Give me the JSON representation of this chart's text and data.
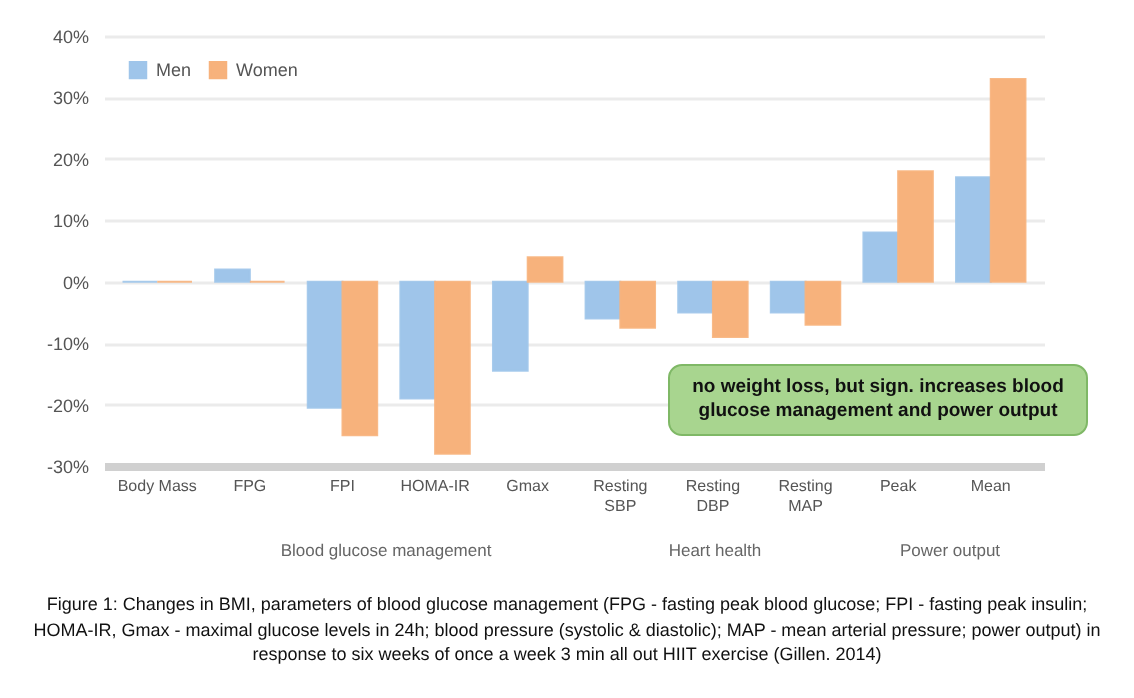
{
  "chart_data": {
    "type": "bar",
    "categories": [
      "Body Mass",
      "FPG",
      "FPI",
      "HOMA-IR",
      "Gmax",
      "Resting SBP",
      "Resting DBP",
      "Resting MAP",
      "Peak",
      "Mean"
    ],
    "series": [
      {
        "name": "Men",
        "color": "#9fc5ea",
        "values": [
          0,
          2,
          -20.5,
          -19,
          -14.5,
          -6,
          -5,
          -5,
          8,
          17
        ]
      },
      {
        "name": "Women",
        "color": "#f7b27c",
        "values": [
          0,
          0,
          -25,
          -28,
          4,
          -7.5,
          -9,
          -7,
          18,
          33
        ]
      }
    ],
    "ylim": [
      -30,
      40
    ],
    "yticks": [
      {
        "value": -30,
        "label": "-30%"
      },
      {
        "value": -20,
        "label": "-20%"
      },
      {
        "value": -10,
        "label": "-10%"
      },
      {
        "value": 0,
        "label": "0%"
      },
      {
        "value": 10,
        "label": "10%"
      },
      {
        "value": 20,
        "label": "20%"
      },
      {
        "value": 30,
        "label": "30%"
      },
      {
        "value": 40,
        "label": "40%"
      }
    ],
    "grid": "y",
    "legend": "top left",
    "annotations": [
      "Blood glucose management",
      "Heart health",
      "Power output",
      "no weight loss, but sign. increases blood glucose management and power output",
      "Figure 1: Changes in BMI, parameters of blood glucose management (FPG - fasting peak blood glucose; FPI - fasting peak insulin; HOMA-IR, Gmax - maximal glucose levels in 24h; blood pressure (systolic & diastolic); MAP - mean arterial pressure; power output) in response to six weeks of once a week 3 min all out HIIT exercise (Gillen. 2014)"
    ]
  }
}
